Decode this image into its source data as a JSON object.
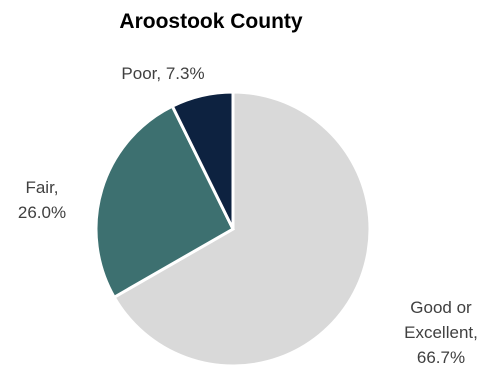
{
  "chart_data": {
    "type": "pie",
    "title": "Aroostook County",
    "start_angle_deg": 0,
    "direction": "clockwise",
    "slices": [
      {
        "label": "Good or Excellent",
        "value": 66.7,
        "value_text": "66.7%",
        "label_lines": [
          "Good or",
          "Excellent,",
          "66.7%"
        ],
        "color": "#d9d9d9"
      },
      {
        "label": "Fair",
        "value": 26.0,
        "value_text": "26.0%",
        "label_lines": [
          "Fair,",
          "26.0%"
        ],
        "color": "#3d7070"
      },
      {
        "label": "Poor",
        "value": 7.3,
        "value_text": "7.3%",
        "label_lines": [
          "Poor, 7.3%"
        ],
        "color": "#0d2240"
      }
    ],
    "legend": "none",
    "colors": {
      "slice_border": "#ffffff",
      "label_text": "#404040",
      "title_text": "#000000"
    }
  }
}
